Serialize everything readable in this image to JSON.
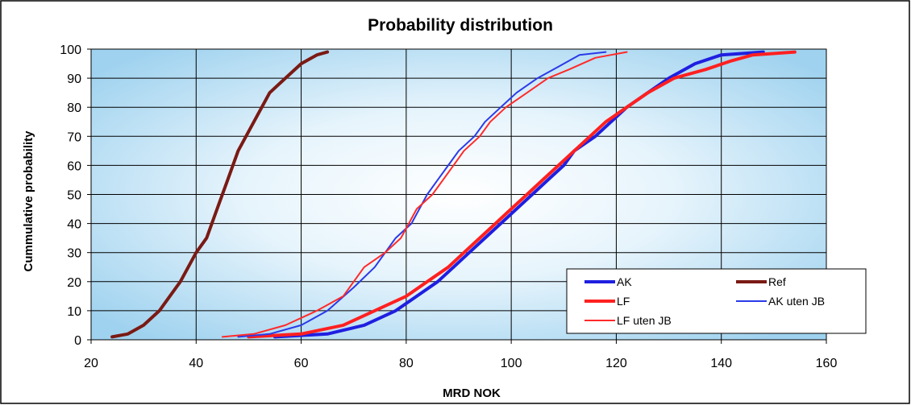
{
  "chart_data": {
    "type": "line",
    "title": "Probability distribution",
    "xlabel": "MRD NOK",
    "ylabel": "Cummulative probability",
    "xlim": [
      20,
      160
    ],
    "ylim": [
      0,
      100
    ],
    "x_ticks": [
      20,
      40,
      60,
      80,
      100,
      120,
      140,
      160
    ],
    "y_ticks": [
      0,
      10,
      20,
      30,
      40,
      50,
      60,
      70,
      80,
      90,
      100
    ],
    "grid": true,
    "legend_position": "bottom-right",
    "series": [
      {
        "name": "AK",
        "color": "#1f1fe0",
        "style": "thick",
        "points": [
          [
            55,
            1
          ],
          [
            65,
            2
          ],
          [
            72,
            5
          ],
          [
            78,
            10
          ],
          [
            82,
            15
          ],
          [
            86,
            20
          ],
          [
            89,
            25
          ],
          [
            92,
            30
          ],
          [
            95,
            35
          ],
          [
            98,
            40
          ],
          [
            101,
            45
          ],
          [
            104,
            50
          ],
          [
            107,
            55
          ],
          [
            110,
            60
          ],
          [
            112,
            65
          ],
          [
            116,
            70
          ],
          [
            119,
            75
          ],
          [
            122,
            80
          ],
          [
            126,
            85
          ],
          [
            130,
            90
          ],
          [
            135,
            95
          ],
          [
            140,
            98
          ],
          [
            148,
            99
          ]
        ]
      },
      {
        "name": "Ref",
        "color": "#7a1a14",
        "style": "thick",
        "points": [
          [
            24,
            1
          ],
          [
            27,
            2
          ],
          [
            30,
            5
          ],
          [
            33,
            10
          ],
          [
            37,
            20
          ],
          [
            40,
            30
          ],
          [
            42,
            35
          ],
          [
            44,
            45
          ],
          [
            46,
            55
          ],
          [
            48,
            65
          ],
          [
            51,
            75
          ],
          [
            54,
            85
          ],
          [
            57,
            90
          ],
          [
            60,
            95
          ],
          [
            63,
            98
          ],
          [
            65,
            99
          ]
        ]
      },
      {
        "name": "LF",
        "color": "#ff2020",
        "style": "thick",
        "points": [
          [
            50,
            1
          ],
          [
            60,
            2
          ],
          [
            68,
            5
          ],
          [
            74,
            10
          ],
          [
            80,
            15
          ],
          [
            84,
            20
          ],
          [
            88,
            25
          ],
          [
            91,
            30
          ],
          [
            94,
            35
          ],
          [
            97,
            40
          ],
          [
            100,
            45
          ],
          [
            103,
            50
          ],
          [
            106,
            55
          ],
          [
            109,
            60
          ],
          [
            112,
            65
          ],
          [
            115,
            70
          ],
          [
            118,
            75
          ],
          [
            122,
            80
          ],
          [
            126,
            85
          ],
          [
            131,
            90
          ],
          [
            137,
            93
          ],
          [
            142,
            96
          ],
          [
            146,
            98
          ],
          [
            154,
            99
          ]
        ]
      },
      {
        "name": "AK uten JB",
        "color": "#2a3ae8",
        "style": "thin",
        "points": [
          [
            48,
            1
          ],
          [
            54,
            2
          ],
          [
            60,
            5
          ],
          [
            65,
            10
          ],
          [
            70,
            18
          ],
          [
            74,
            25
          ],
          [
            78,
            35
          ],
          [
            81,
            40
          ],
          [
            84,
            50
          ],
          [
            86,
            55
          ],
          [
            88,
            60
          ],
          [
            90,
            65
          ],
          [
            93,
            70
          ],
          [
            95,
            75
          ],
          [
            98,
            80
          ],
          [
            101,
            85
          ],
          [
            105,
            90
          ],
          [
            109,
            94
          ],
          [
            113,
            98
          ],
          [
            118,
            99
          ]
        ]
      },
      {
        "name": "LF uten JB",
        "color": "#ff2a2a",
        "style": "thin",
        "points": [
          [
            45,
            1
          ],
          [
            51,
            2
          ],
          [
            57,
            5
          ],
          [
            63,
            10
          ],
          [
            68,
            15
          ],
          [
            72,
            25
          ],
          [
            76,
            30
          ],
          [
            79,
            35
          ],
          [
            82,
            45
          ],
          [
            85,
            50
          ],
          [
            87,
            55
          ],
          [
            89,
            60
          ],
          [
            91,
            65
          ],
          [
            94,
            70
          ],
          [
            96,
            75
          ],
          [
            99,
            80
          ],
          [
            103,
            85
          ],
          [
            107,
            90
          ],
          [
            111,
            93
          ],
          [
            116,
            97
          ],
          [
            122,
            99
          ]
        ]
      }
    ]
  }
}
